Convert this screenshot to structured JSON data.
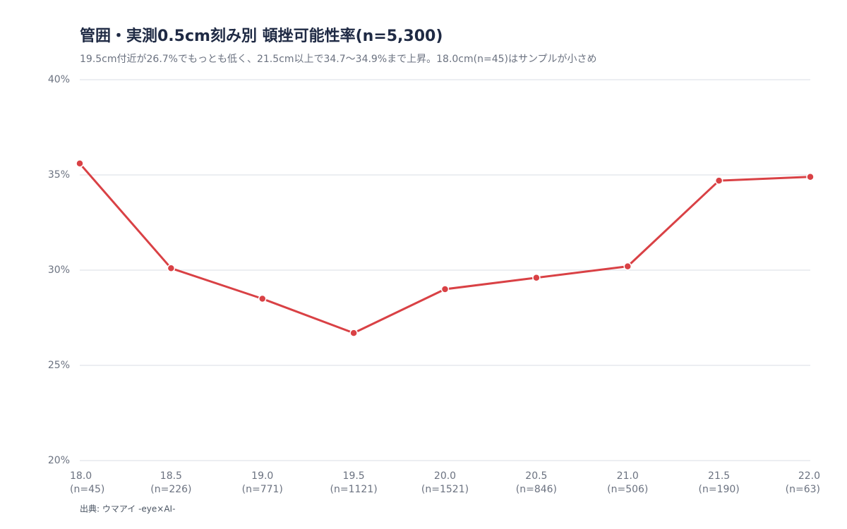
{
  "chart_data": {
    "type": "line",
    "title": "管囲・実測0.5cm刻み別 頓挫可能性率(n=5,300)",
    "subtitle": "19.5cm付近が26.7%でもっとも低く、21.5cm以上で34.7〜34.9%まで上昇。18.0cm(n=45)はサンプルが小さめ",
    "source": "出典: ウマアイ -eye×AI-",
    "categories": [
      "18.0",
      "18.5",
      "19.0",
      "19.5",
      "20.0",
      "20.5",
      "21.0",
      "21.5",
      "22.0"
    ],
    "category_notes": [
      "(n=45)",
      "(n=226)",
      "(n=771)",
      "(n=1121)",
      "(n=1521)",
      "(n=846)",
      "(n=506)",
      "(n=190)",
      "(n=63)"
    ],
    "series": [
      {
        "color": "#d94145",
        "values": [
          35.6,
          30.1,
          28.5,
          26.7,
          29.0,
          29.6,
          30.2,
          34.7,
          34.9
        ]
      }
    ],
    "ylim": [
      20,
      40
    ],
    "yticks": [
      {
        "value": 20,
        "label": "20%"
      },
      {
        "value": 25,
        "label": "25%"
      },
      {
        "value": 30,
        "label": "30%"
      },
      {
        "value": 35,
        "label": "35%"
      },
      {
        "value": 40,
        "label": "40%"
      }
    ],
    "grid": true
  }
}
